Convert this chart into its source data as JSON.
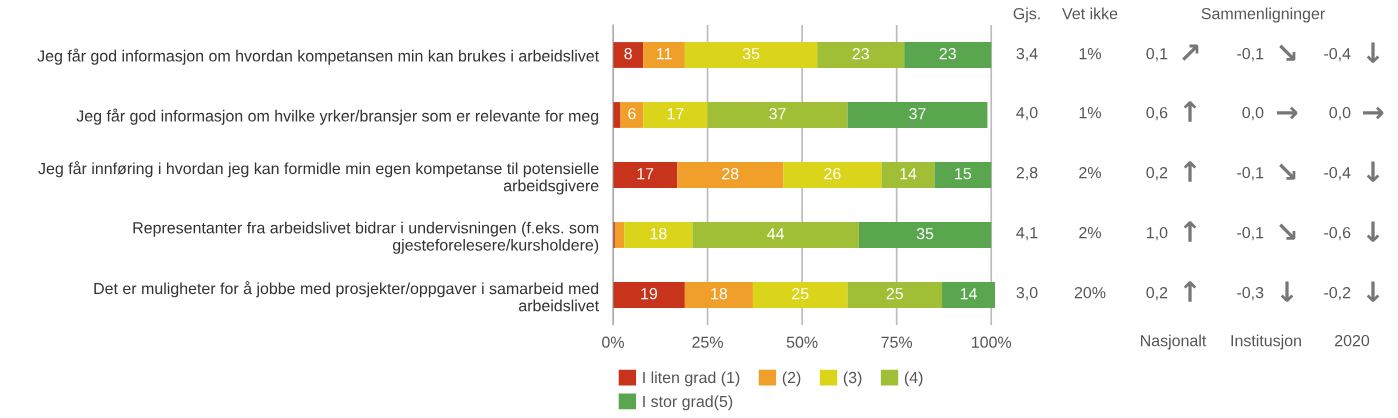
{
  "chart_data": {
    "type": "bar",
    "orientation": "horizontal",
    "stacked": true,
    "categories": [
      "Jeg får god informasjon om hvordan kompetansen min kan brukes i arbeidslivet",
      "Jeg får god informasjon om hvilke yrker/bransjer som er relevante for meg",
      "Jeg får innføring i hvordan jeg kan formidle min egen kompetanse til potensielle\narbeidsgivere",
      "Representanter fra arbeidslivet bidrar i undervisningen (f.eks. som\ngjesteforelesere/kursholdere)",
      "Det er muligheter for å jobbe med prosjekter/oppgaver i samarbeid med\narbeidslivet"
    ],
    "series": [
      {
        "name": "I liten grad (1)",
        "color": "#c8341b",
        "values": [
          8,
          2,
          17,
          0.5,
          19
        ],
        "value_labels": [
          "8",
          null,
          "17",
          null,
          "19"
        ]
      },
      {
        "name": "(2)",
        "color": "#f0a02a",
        "values": [
          11,
          6,
          28,
          2.5,
          18
        ],
        "value_labels": [
          "11",
          "6",
          "28",
          null,
          "18"
        ]
      },
      {
        "name": "(3)",
        "color": "#dad51b",
        "values": [
          35,
          17,
          26,
          18,
          25
        ],
        "value_labels": [
          "35",
          "17",
          "26",
          "18",
          "25"
        ]
      },
      {
        "name": "(4)",
        "color": "#a0bf36",
        "values": [
          23,
          37,
          14,
          44,
          25
        ],
        "value_labels": [
          "23",
          "37",
          "14",
          "44",
          "25"
        ]
      },
      {
        "name": "I stor grad(5)",
        "color": "#5aa64f",
        "values": [
          23,
          37,
          15,
          35,
          14
        ],
        "value_labels": [
          "23",
          "37",
          "15",
          "35",
          "14"
        ]
      }
    ],
    "xlim": [
      0,
      101
    ],
    "xticks": [
      {
        "value": 0,
        "label": "0%"
      },
      {
        "value": 25,
        "label": "25%"
      },
      {
        "value": 50,
        "label": "50%"
      },
      {
        "value": 75,
        "label": "75%"
      },
      {
        "value": 100,
        "label": "100%"
      }
    ],
    "grid": "x",
    "legend": "bottom",
    "annotations": [
      "Gjs.",
      "Vet ikke",
      "Sammenligninger",
      "Nasjonalt",
      "Institusjon",
      "2020",
      "3,4",
      "1%",
      "0,1",
      "↗",
      "-0,1",
      "↘",
      "-0,4",
      "↓",
      "4,0",
      "1%",
      "0,6",
      "↑",
      "0,0",
      "→",
      "0,0",
      "→",
      "2,8",
      "2%",
      "0,2",
      "↑",
      "-0,1",
      "↘",
      "-0,4",
      "↓",
      "4,1",
      "2%",
      "1,0",
      "↑",
      "-0,1",
      "↘",
      "-0,6",
      "↓",
      "3,0",
      "20%",
      "0,2",
      "↑",
      "-0,3",
      "↓",
      "-0,2",
      "↓"
    ]
  }
}
